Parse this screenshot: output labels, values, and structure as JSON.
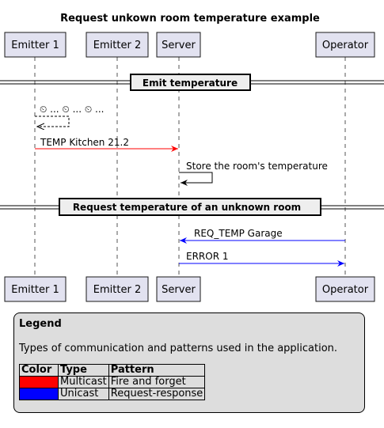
{
  "title": "Request unkown room temperature example",
  "participants": [
    "Emitter 1",
    "Emitter 2",
    "Server",
    "Operator"
  ],
  "dividers": [
    "Emit temperature",
    "Request temperature of an unknown room"
  ],
  "messages": [
    {
      "label": "⏲ ... ⏲ ... ⏲ ...",
      "style": "self-dashed",
      "color": "#000000"
    },
    {
      "label": "TEMP Kitchen 21.2",
      "style": "right",
      "color": "#ff0000"
    },
    {
      "label": "Store the room's temperature",
      "style": "self",
      "color": "#000000"
    },
    {
      "label": "REQ_TEMP Garage",
      "style": "left",
      "color": "#0000ff"
    },
    {
      "label": "ERROR 1",
      "style": "right",
      "color": "#0000ff"
    }
  ],
  "legend": {
    "title": "Legend",
    "description": "Types of communication and patterns used in the application.",
    "headers": [
      "Color",
      "Type",
      "Pattern"
    ],
    "rows": [
      {
        "color": "#ff0000",
        "type": "Multicast",
        "pattern": "Fire and forget"
      },
      {
        "color": "#0000ff",
        "type": "Unicast",
        "pattern": "Request-response"
      }
    ]
  },
  "colors": {
    "participant_fill": "#e2e2f0",
    "legend_fill": "#dddddd",
    "divider_fill": "#eeeeee"
  }
}
